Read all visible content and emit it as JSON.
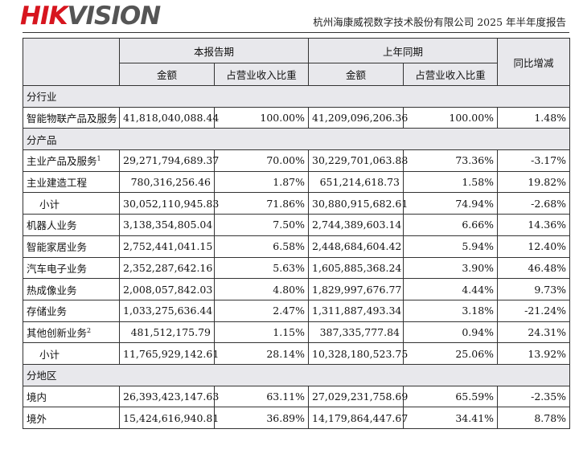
{
  "header": {
    "logo_part1": "HIK",
    "logo_part2": "VISION",
    "doc_title": "杭州海康威视数字技术股份有限公司 2025 年半年度报告"
  },
  "table": {
    "group_current": "本报告期",
    "group_prior": "上年同期",
    "col_yoy": "同比增减",
    "col_amount": "金额",
    "col_share": "占营业收入比重",
    "sections": [
      {
        "title": "分行业",
        "rows": [
          {
            "label": "智能物联产品及服务",
            "cur_amount": "41,818,040,088.44",
            "cur_share": "100.00%",
            "prev_amount": "41,209,096,206.36",
            "prev_share": "100.00%",
            "yoy": "1.48%"
          }
        ]
      },
      {
        "title": "分产品",
        "rows": [
          {
            "label": "主业产品及服务",
            "sup": "1",
            "cur_amount": "29,271,794,689.37",
            "cur_share": "70.00%",
            "prev_amount": "30,229,701,063.88",
            "prev_share": "73.36%",
            "yoy": "-3.17%"
          },
          {
            "label": "主业建造工程",
            "cur_amount": "780,316,256.46",
            "cur_share": "1.87%",
            "prev_amount": "651,214,618.73",
            "prev_share": "1.58%",
            "yoy": "19.82%"
          },
          {
            "label": "小计",
            "subtotal": true,
            "cur_amount": "30,052,110,945.83",
            "cur_share": "71.86%",
            "prev_amount": "30,880,915,682.61",
            "prev_share": "74.94%",
            "yoy": "-2.68%"
          },
          {
            "label": "机器人业务",
            "cur_amount": "3,138,354,805.04",
            "cur_share": "7.50%",
            "prev_amount": "2,744,389,603.14",
            "prev_share": "6.66%",
            "yoy": "14.36%"
          },
          {
            "label": "智能家居业务",
            "cur_amount": "2,752,441,041.15",
            "cur_share": "6.58%",
            "prev_amount": "2,448,684,604.42",
            "prev_share": "5.94%",
            "yoy": "12.40%"
          },
          {
            "label": "汽车电子业务",
            "cur_amount": "2,352,287,642.16",
            "cur_share": "5.63%",
            "prev_amount": "1,605,885,368.24",
            "prev_share": "3.90%",
            "yoy": "46.48%"
          },
          {
            "label": "热成像业务",
            "cur_amount": "2,008,057,842.03",
            "cur_share": "4.80%",
            "prev_amount": "1,829,997,676.77",
            "prev_share": "4.44%",
            "yoy": "9.73%"
          },
          {
            "label": "存储业务",
            "cur_amount": "1,033,275,636.44",
            "cur_share": "2.47%",
            "prev_amount": "1,311,887,493.34",
            "prev_share": "3.18%",
            "yoy": "-21.24%"
          },
          {
            "label": "其他创新业务",
            "sup": "2",
            "cur_amount": "481,512,175.79",
            "cur_share": "1.15%",
            "prev_amount": "387,335,777.84",
            "prev_share": "0.94%",
            "yoy": "24.31%"
          },
          {
            "label": "小计",
            "subtotal": true,
            "cur_amount": "11,765,929,142.61",
            "cur_share": "28.14%",
            "prev_amount": "10,328,180,523.75",
            "prev_share": "25.06%",
            "yoy": "13.92%"
          }
        ]
      },
      {
        "title": "分地区",
        "rows": [
          {
            "label": "境内",
            "cur_amount": "26,393,423,147.63",
            "cur_share": "63.11%",
            "prev_amount": "27,029,231,758.69",
            "prev_share": "65.59%",
            "yoy": "-2.35%"
          },
          {
            "label": "境外",
            "cur_amount": "15,424,616,940.81",
            "cur_share": "36.89%",
            "prev_amount": "14,179,864,447.67",
            "prev_share": "34.41%",
            "yoy": "8.78%"
          }
        ]
      }
    ]
  }
}
